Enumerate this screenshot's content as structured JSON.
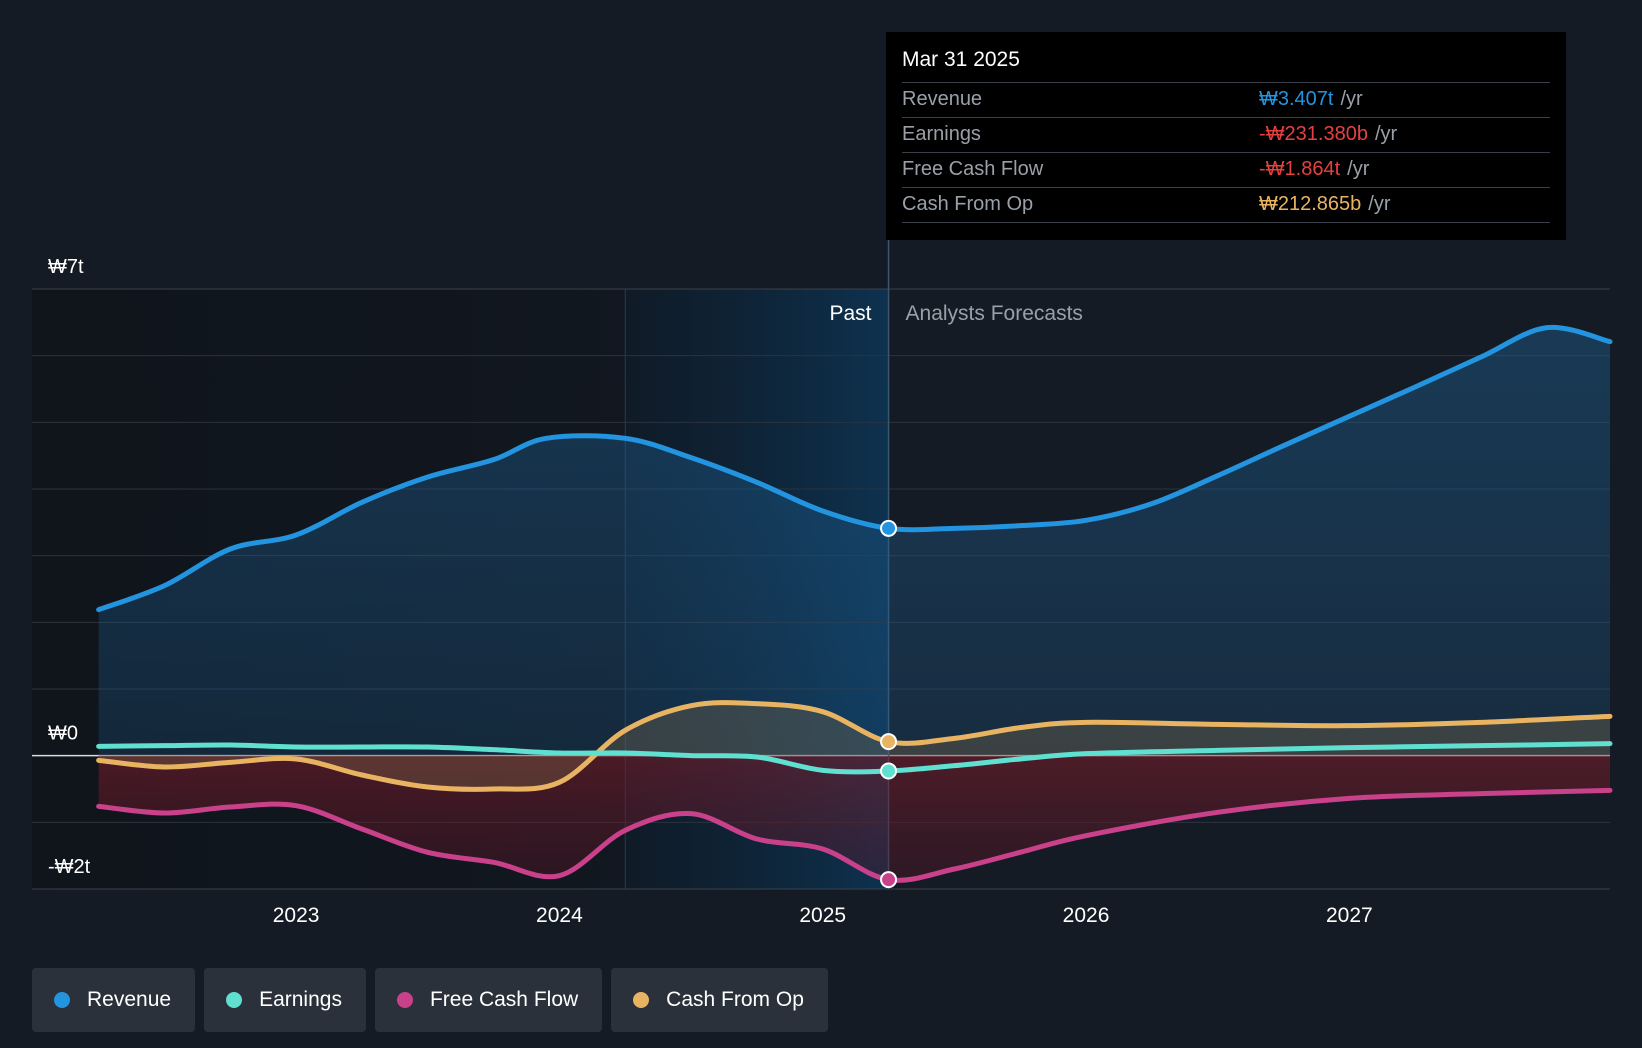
{
  "tooltip": {
    "date": "Mar 31 2025",
    "rows": [
      {
        "label": "Revenue",
        "value": "₩3.407t",
        "unit": "/yr",
        "color": "#2394df"
      },
      {
        "label": "Earnings",
        "value": "-₩231.380b",
        "unit": "/yr",
        "color": "#e64141"
      },
      {
        "label": "Free Cash Flow",
        "value": "-₩1.864t",
        "unit": "/yr",
        "color": "#e64141"
      },
      {
        "label": "Cash From Op",
        "value": "₩212.865b",
        "unit": "/yr",
        "color": "#e9b462"
      }
    ]
  },
  "legend": [
    {
      "label": "Revenue",
      "color": "#2394df"
    },
    {
      "label": "Earnings",
      "color": "#5fe0d0"
    },
    {
      "label": "Free Cash Flow",
      "color": "#c9418b"
    },
    {
      "label": "Cash From Op",
      "color": "#e9b462"
    }
  ],
  "chart_data": {
    "type": "line",
    "title": "",
    "xlabel": "",
    "ylabel": "",
    "y_tick_labels": [
      "₩7t",
      "₩0",
      "-₩2t"
    ],
    "x_tick_labels": [
      "2023",
      "2024",
      "2025",
      "2026",
      "2027"
    ],
    "x_ticks": [
      2023,
      2024,
      2025,
      2026,
      2027
    ],
    "xlim": [
      2022.24,
      2027.99
    ],
    "ylim": [
      -2,
      7
    ],
    "past_label": "Past",
    "forecast_label": "Analysts Forecasts",
    "past_end_x": 2025.25,
    "highlight_band_start_x": 2024.25,
    "grid": true,
    "series": [
      {
        "name": "Revenue",
        "color": "#2394df",
        "x": [
          2022.25,
          2022.5,
          2022.75,
          2023.0,
          2023.25,
          2023.5,
          2023.75,
          2023.95,
          2024.25,
          2024.5,
          2024.75,
          2025.0,
          2025.25,
          2025.5,
          2025.75,
          2026.0,
          2026.25,
          2026.5,
          2026.75,
          2027.0,
          2027.25,
          2027.5,
          2027.75,
          2027.99
        ],
        "values": [
          2.19,
          2.55,
          3.1,
          3.31,
          3.8,
          4.18,
          4.44,
          4.76,
          4.76,
          4.47,
          4.1,
          3.67,
          3.41,
          3.41,
          3.45,
          3.53,
          3.78,
          4.2,
          4.65,
          5.09,
          5.53,
          5.98,
          6.42,
          6.21
        ]
      },
      {
        "name": "Earnings",
        "color": "#5fe0d0",
        "x": [
          2022.25,
          2022.5,
          2022.75,
          2023.0,
          2023.25,
          2023.5,
          2023.75,
          2024.0,
          2024.25,
          2024.5,
          2024.75,
          2025.0,
          2025.25,
          2025.5,
          2025.75,
          2026.0,
          2026.5,
          2027.0,
          2027.5,
          2027.99
        ],
        "values": [
          0.14,
          0.15,
          0.16,
          0.13,
          0.13,
          0.13,
          0.09,
          0.04,
          0.04,
          0.0,
          -0.02,
          -0.22,
          -0.23,
          -0.15,
          -0.05,
          0.03,
          0.08,
          0.12,
          0.15,
          0.18
        ]
      },
      {
        "name": "Free Cash Flow",
        "color": "#c9418b",
        "x": [
          2022.25,
          2022.5,
          2022.75,
          2023.0,
          2023.25,
          2023.5,
          2023.75,
          2024.0,
          2024.25,
          2024.5,
          2024.75,
          2025.0,
          2025.25,
          2025.5,
          2025.75,
          2026.0,
          2026.5,
          2027.0,
          2027.5,
          2027.99
        ],
        "values": [
          -0.76,
          -0.86,
          -0.77,
          -0.75,
          -1.1,
          -1.45,
          -1.6,
          -1.8,
          -1.12,
          -0.87,
          -1.25,
          -1.4,
          -1.86,
          -1.7,
          -1.45,
          -1.2,
          -0.85,
          -0.64,
          -0.57,
          -0.52
        ]
      },
      {
        "name": "Cash From Op",
        "color": "#e9b462",
        "x": [
          2022.25,
          2022.5,
          2022.75,
          2023.0,
          2023.25,
          2023.5,
          2023.75,
          2024.0,
          2024.25,
          2024.5,
          2024.75,
          2025.0,
          2025.25,
          2025.5,
          2025.75,
          2026.0,
          2026.5,
          2027.0,
          2027.5,
          2027.99
        ],
        "values": [
          -0.07,
          -0.17,
          -0.1,
          -0.05,
          -0.29,
          -0.47,
          -0.5,
          -0.4,
          0.38,
          0.75,
          0.78,
          0.66,
          0.21,
          0.26,
          0.42,
          0.5,
          0.47,
          0.45,
          0.5,
          0.59
        ]
      }
    ],
    "markers_at_x": 2025.25
  }
}
